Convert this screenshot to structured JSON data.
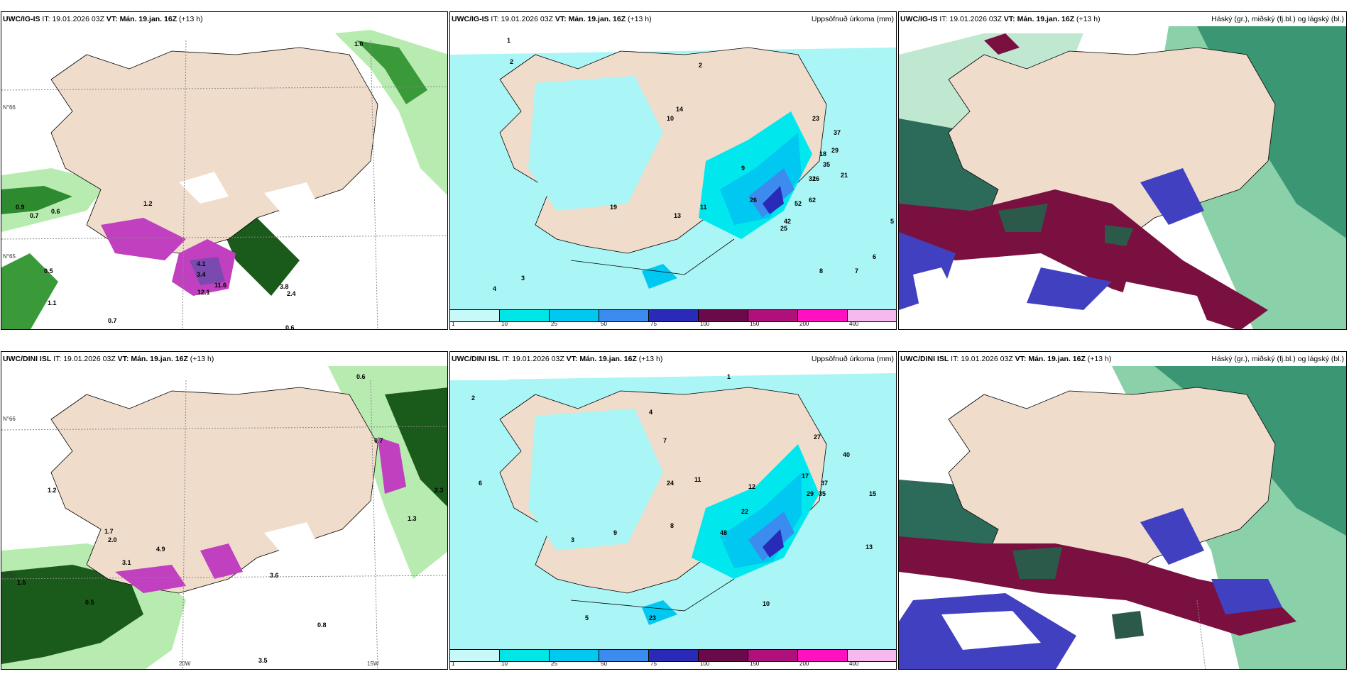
{
  "panels": {
    "row1": {
      "p1": {
        "model": "UWC/IG-IS",
        "it_label": "IT:",
        "it": "19.01.2026 03Z",
        "vt_label": "VT:",
        "vt": "Mán. 19.jan. 16Z",
        "lead": "(+13 h)",
        "right": ""
      },
      "p2": {
        "model": "UWC/IG-IS",
        "it_label": "IT:",
        "it": "19.01.2026 03Z",
        "vt_label": "VT:",
        "vt": "Mán. 19.jan. 16Z",
        "lead": "(+13 h)",
        "right": "Uppsöfnuð úrkoma (mm)"
      },
      "p3": {
        "model": "UWC/IG-IS",
        "it_label": "IT:",
        "it": "19.01.2026 03Z",
        "vt_label": "VT:",
        "vt": "Mán. 19.jan. 16Z",
        "lead": "(+13 h)",
        "right": "Háský (gr.), miðský (fj.bl.) og lágský (bl.)"
      }
    },
    "row2": {
      "p1": {
        "model": "UWC/DINI ISL",
        "it_label": "IT:",
        "it": "19.01.2026 03Z",
        "vt_label": "VT:",
        "vt": "Mán. 19.jan. 16Z",
        "lead": "(+13 h)",
        "right": ""
      },
      "p2": {
        "model": "UWC/DINI ISL",
        "it_label": "IT:",
        "it": "19.01.2026 03Z",
        "vt_label": "VT:",
        "vt": "Mán. 19.jan. 16Z",
        "lead": "(+13 h)",
        "right": "Uppsöfnuð úrkoma (mm)"
      },
      "p3": {
        "model": "UWC/DINI ISL",
        "it_label": "IT:",
        "it": "19.01.2026 03Z",
        "vt_label": "VT:",
        "vt": "Mán. 19.jan. 16Z",
        "lead": "(+13 h)",
        "right": "Háský (gr.), miðský (fj.bl.) og lágský (bl.)"
      }
    }
  },
  "coords": {
    "lat66": "N°66",
    "lat65": "N°65",
    "lat64": "N°64",
    "lon20": "20W",
    "lon15": "15W"
  },
  "legend": {
    "ticks": [
      "1",
      "10",
      "25",
      "50",
      "75",
      "100",
      "150",
      "200",
      "400"
    ],
    "colors": [
      "#c8f9f9",
      "#00e6e6",
      "#00c8f0",
      "#3c8cf0",
      "#2a2ab8",
      "#6a0a4a",
      "#b0107a",
      "#ff10c0",
      "#f7b8f0"
    ]
  },
  "colors": {
    "land": "#efdccb",
    "precip_light": "#aaf5f5",
    "precip_mid": "#00e8ee",
    "wind_green": "#3a9a3a",
    "high_cloud": "#2c8c6a",
    "mid_cloud": "#7a1040",
    "low_cloud": "#4040c0"
  },
  "labels_precip_top": [
    "1",
    "2",
    "2",
    "3",
    "4",
    "5",
    "6",
    "7",
    "8",
    "9",
    "10",
    "11",
    "13",
    "14",
    "16",
    "18",
    "19",
    "21",
    "23",
    "25",
    "26",
    "29",
    "32",
    "35",
    "37",
    "42",
    "52",
    "62"
  ],
  "labels_rate_top": [
    "1.0",
    "0.9",
    "0.7",
    "0.6",
    "0.5",
    "1.1",
    "1.2",
    "3.4",
    "4.1",
    "11.6",
    "12.1",
    "0.6",
    "0.7",
    "2.4",
    "3.8"
  ],
  "labels_precip_bot": [
    "1",
    "2",
    "3",
    "4",
    "5",
    "6",
    "7",
    "8",
    "9",
    "10",
    "11",
    "12",
    "13",
    "15",
    "17",
    "22",
    "23",
    "24",
    "27",
    "29",
    "35",
    "37",
    "40",
    "48"
  ],
  "labels_rate_bot": [
    "1.2",
    "1.7",
    "2.0",
    "4.9",
    "3.1",
    "0.8",
    "0.6",
    "0.7",
    "1.3",
    "2.3",
    "3.5",
    "3.6",
    "0.5",
    "1.5"
  ]
}
